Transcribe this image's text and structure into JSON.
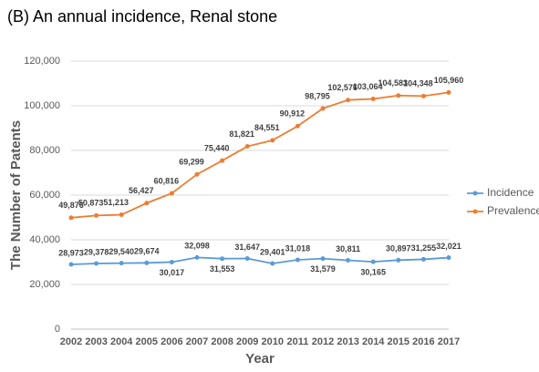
{
  "chart_data": {
    "type": "line",
    "title": "(B) An annual incidence, Renal stone",
    "x_label": "Year",
    "y_label": "The Number of Patents",
    "categories": [
      "2002",
      "2003",
      "2004",
      "2005",
      "2006",
      "2007",
      "2008",
      "2009",
      "2010",
      "2011",
      "2012",
      "2013",
      "2014",
      "2015",
      "2016",
      "2017"
    ],
    "series": [
      {
        "name": "Incidence",
        "color": "#5b9bd5",
        "values": [
          28973,
          29378,
          29540,
          29674,
          30017,
          32098,
          31553,
          31647,
          29401,
          31018,
          31579,
          30811,
          30165,
          30897,
          31255,
          32021
        ],
        "value_labels": [
          "28,973",
          "29,378",
          "29,540",
          "29,674",
          "30,017",
          "32,098",
          "31,553",
          "31,647",
          "29,401",
          "31,018",
          "31,579",
          "30,811",
          "30,165",
          "30,897",
          "31,255",
          "32,021"
        ]
      },
      {
        "name": "Prevalence",
        "color": "#ed7d31",
        "values": [
          49876,
          50873,
          51213,
          56427,
          60816,
          69299,
          75440,
          81821,
          84551,
          90912,
          98795,
          102576,
          103064,
          104583,
          104348,
          105960
        ],
        "value_labels": [
          "49,876",
          "50,873",
          "51,213",
          "56,427",
          "60,816",
          "69,299",
          "75,440",
          "81,821",
          "84,551",
          "90,912",
          "98,795",
          "102,576",
          "103,064",
          "104,583",
          "104,348",
          "105,960"
        ]
      }
    ],
    "ylim": [
      0,
      120000
    ],
    "yticks": [
      {
        "value": 0,
        "label": "0"
      },
      {
        "value": 20000,
        "label": "20,000"
      },
      {
        "value": 40000,
        "label": "40,000"
      },
      {
        "value": 60000,
        "label": "60,000"
      },
      {
        "value": 80000,
        "label": "80,000"
      },
      {
        "value": 100000,
        "label": "100,000"
      },
      {
        "value": 120000,
        "label": "120,000"
      }
    ],
    "grid": true,
    "legend": "right"
  }
}
